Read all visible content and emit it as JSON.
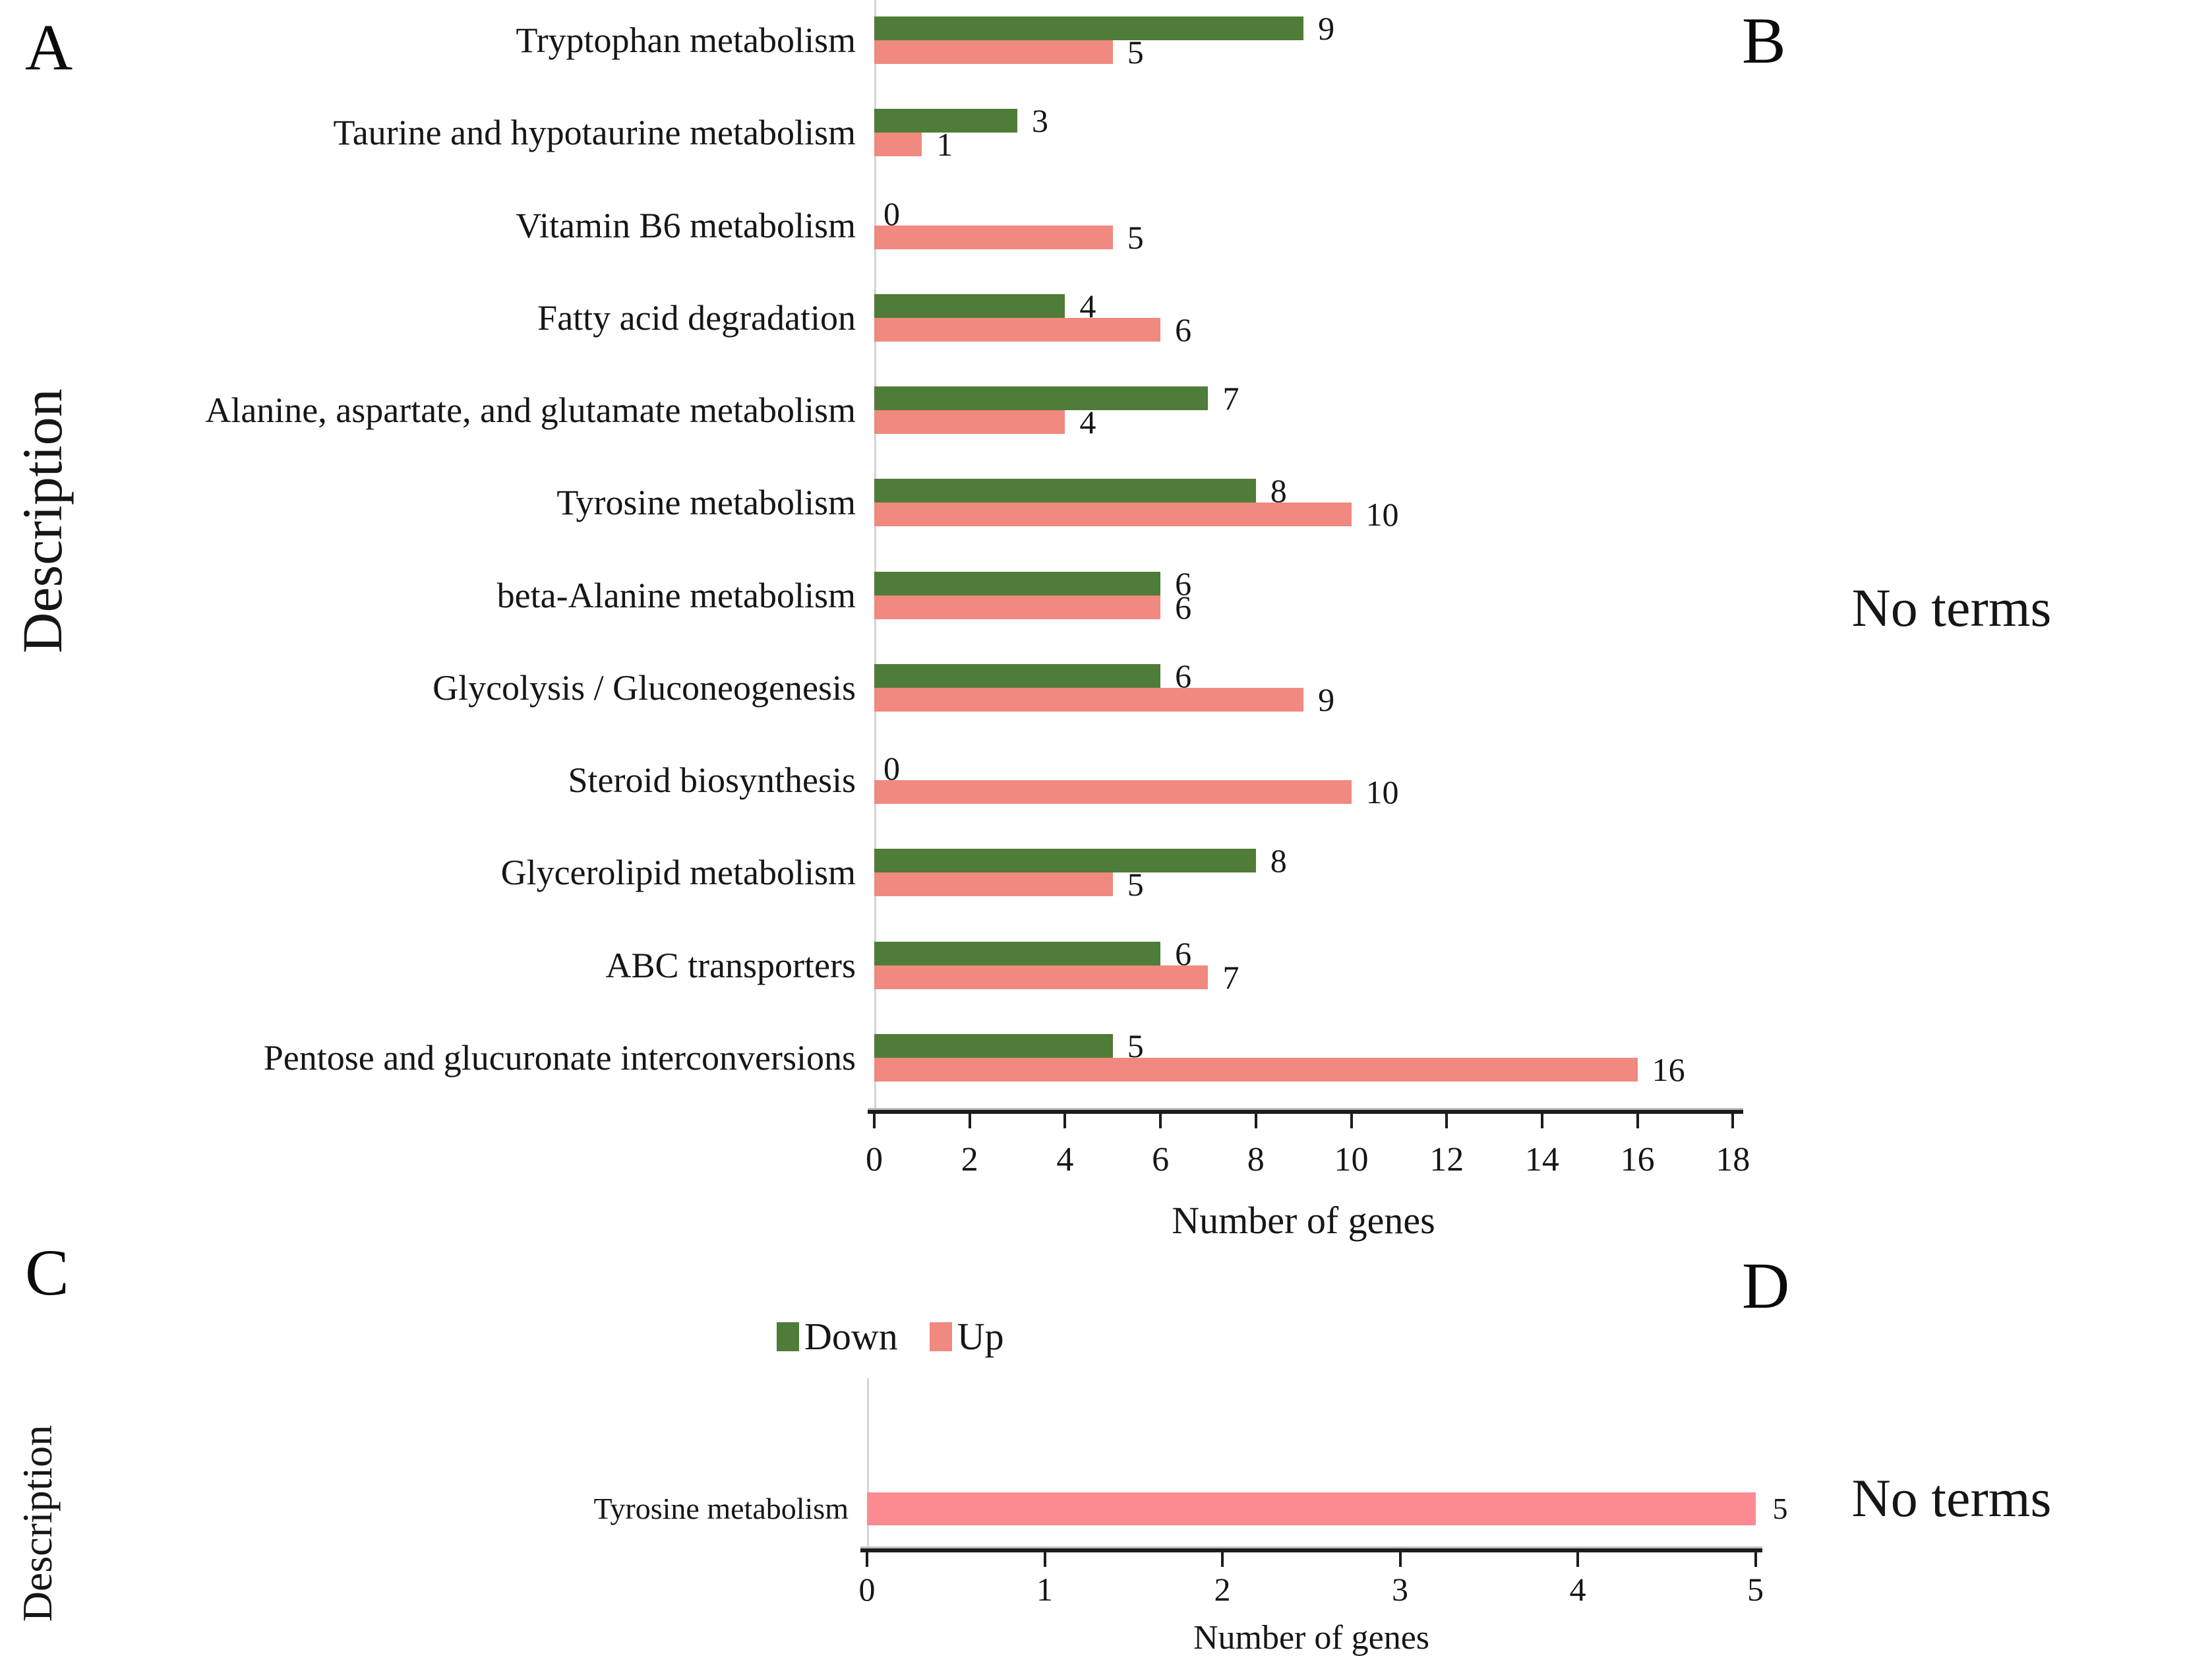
{
  "figure": {
    "panels": {
      "a": {
        "letter": "A",
        "y_axis_title": "Description",
        "x_axis_title": "Number of genes"
      },
      "b": {
        "letter": "B",
        "message": "No terms"
      },
      "c": {
        "letter": "C",
        "y_axis_title": "Description",
        "x_axis_title": "Number of genes"
      },
      "d": {
        "letter": "D",
        "message": "No terms"
      }
    },
    "legend": {
      "items": [
        {
          "label": "Down",
          "color": "#4f7c38"
        },
        {
          "label": "Up",
          "color": "#f0897f"
        }
      ]
    }
  },
  "chart_data": [
    {
      "id": "panel-a",
      "type": "bar",
      "orientation": "horizontal",
      "title": "",
      "xlabel": "Number of genes",
      "ylabel": "Description",
      "xlim": [
        0,
        18
      ],
      "xticks": [
        0,
        2,
        4,
        6,
        8,
        10,
        12,
        14,
        16,
        18
      ],
      "grid": false,
      "bar_value_labels": true,
      "legend_position": "bottom-center",
      "categories": [
        "Tryptophan metabolism",
        "Taurine and hypotaurine metabolism",
        "Vitamin B6 metabolism",
        "Fatty acid degradation",
        "Alanine, aspartate, and glutamate metabolism",
        "Tyrosine metabolism",
        "beta-Alanine metabolism",
        "Glycolysis / Gluconeogenesis",
        "Steroid biosynthesis",
        "Glycerolipid metabolism",
        "ABC transporters",
        "Pentose and glucuronate interconversions"
      ],
      "series": [
        {
          "name": "Down",
          "color": "#4f7c38",
          "values": [
            9,
            3,
            0,
            4,
            7,
            8,
            6,
            6,
            0,
            8,
            6,
            5
          ]
        },
        {
          "name": "Up",
          "color": "#f0897f",
          "values": [
            5,
            1,
            5,
            6,
            4,
            10,
            6,
            9,
            10,
            5,
            7,
            16
          ]
        }
      ]
    },
    {
      "id": "panel-c",
      "type": "bar",
      "orientation": "horizontal",
      "title": "",
      "xlabel": "Number of genes",
      "ylabel": "Description",
      "xlim": [
        0,
        5
      ],
      "xticks": [
        0,
        1,
        2,
        3,
        4,
        5
      ],
      "grid": false,
      "bar_value_labels": true,
      "categories": [
        "Tyrosine metabolism"
      ],
      "series": [
        {
          "name": "Up",
          "color": "#fc8b92",
          "values": [
            5
          ]
        }
      ]
    }
  ]
}
